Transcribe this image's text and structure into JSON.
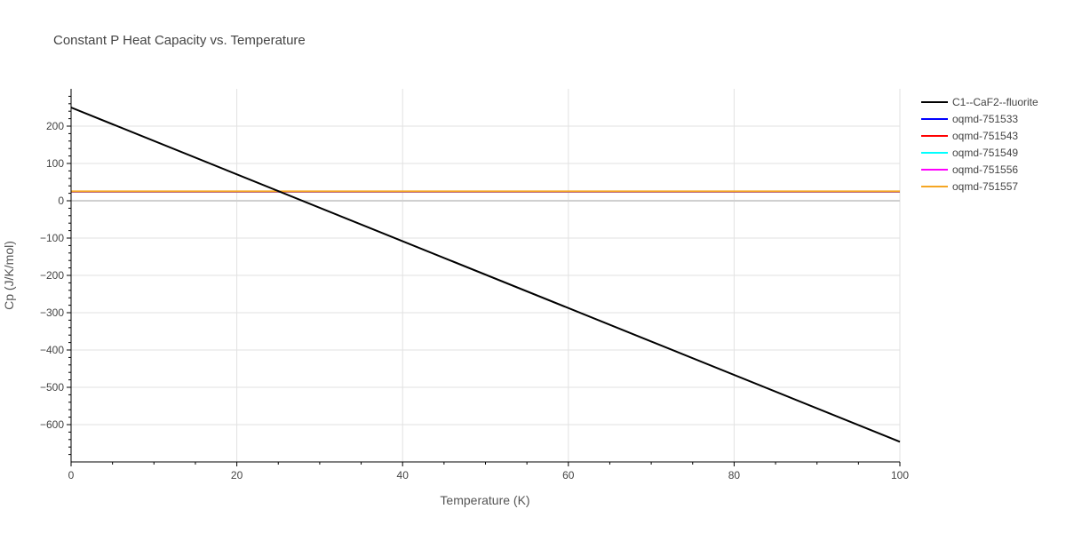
{
  "chart_data": {
    "type": "line",
    "title": "Constant P Heat Capacity vs. Temperature",
    "xlabel": "Temperature (K)",
    "ylabel": "Cp (J/K/mol)",
    "xlim": [
      0,
      100
    ],
    "ylim": [
      -700,
      300
    ],
    "x_ticks": [
      0,
      20,
      40,
      60,
      80,
      100
    ],
    "y_ticks": [
      200,
      100,
      0,
      -100,
      -200,
      -300,
      -400,
      -500,
      -600
    ],
    "grid": true,
    "legend_position": "top-right",
    "series": [
      {
        "name": "C1--CaF2--fluorite",
        "color": "#000000",
        "x": [
          0,
          100
        ],
        "y": [
          250,
          -646
        ]
      },
      {
        "name": "oqmd-751533",
        "color": "#0000ff",
        "x": [
          0,
          100
        ],
        "y": [
          24,
          24
        ]
      },
      {
        "name": "oqmd-751543",
        "color": "#ff0000",
        "x": [
          0,
          100
        ],
        "y": [
          24.5,
          24.5
        ]
      },
      {
        "name": "oqmd-751549",
        "color": "#00ffff",
        "x": [
          0,
          100
        ],
        "y": [
          24.8,
          24.8
        ]
      },
      {
        "name": "oqmd-751556",
        "color": "#ff00ff",
        "x": [
          0,
          100
        ],
        "y": [
          25,
          25
        ]
      },
      {
        "name": "oqmd-751557",
        "color": "#f5a623",
        "x": [
          0,
          100
        ],
        "y": [
          25.2,
          25.2
        ]
      }
    ]
  }
}
